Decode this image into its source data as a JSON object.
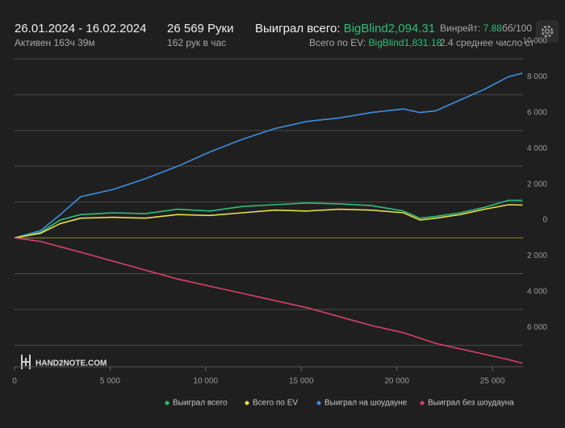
{
  "header": {
    "period": "26.01.2024 - 16.02.2024",
    "active": "Активен 163ч 39м",
    "hands": "26 569 Руки",
    "hands_per_hour": "162 рук в час",
    "won_total_label": "Выиграл всего:",
    "won_total_value": "BigBlind2,094.31",
    "ev_label": "Всего по EV:",
    "ev_value": "BigBlind1,831.18",
    "winrate_label": "Винрейт:",
    "winrate_value": "7.88",
    "winrate_unit": "бб/100",
    "avg_players": "2.4 среднее число ст"
  },
  "watermark": "HAND2NOTE.COM",
  "chart_data": {
    "type": "line",
    "x": [
      0,
      1350,
      2400,
      3460,
      5150,
      6840,
      8530,
      10220,
      11910,
      13600,
      15290,
      16980,
      18670,
      20350,
      21200,
      22050,
      23310,
      24580,
      25840,
      26569
    ],
    "series": [
      {
        "name": "Выиграл всего",
        "color": "#2fbf7a",
        "values": [
          0,
          300,
          1000,
          1300,
          1400,
          1350,
          1600,
          1500,
          1750,
          1850,
          1950,
          1900,
          1800,
          1500,
          1100,
          1200,
          1400,
          1700,
          2100,
          2094
        ]
      },
      {
        "name": "Всего по EV",
        "color": "#e6e04a",
        "values": [
          0,
          250,
          800,
          1100,
          1150,
          1100,
          1300,
          1250,
          1400,
          1550,
          1500,
          1600,
          1550,
          1400,
          1000,
          1100,
          1300,
          1600,
          1850,
          1831
        ]
      },
      {
        "name": "Выиграл на шоудауне",
        "color": "#3d8fe0",
        "values": [
          0,
          400,
          1300,
          2300,
          2700,
          3300,
          4000,
          4800,
          5500,
          6100,
          6500,
          6700,
          7000,
          7200,
          7000,
          7100,
          7700,
          8300,
          9000,
          9200
        ]
      },
      {
        "name": "Выиграл без шоудауна",
        "color": "#d9406e",
        "values": [
          0,
          -200,
          -500,
          -800,
          -1300,
          -1800,
          -2300,
          -2700,
          -3100,
          -3500,
          -3900,
          -4400,
          -4900,
          -5300,
          -5600,
          -5900,
          -6200,
          -6500,
          -6800,
          -7000
        ]
      }
    ],
    "xlim": [
      0,
      26600
    ],
    "xticks": [
      0,
      {
        "value": 5000,
        "label": "5 000"
      },
      {
        "value": 10000,
        "label": "10 000"
      },
      {
        "value": 15000,
        "label": "15 000"
      },
      {
        "value": 20000,
        "label": "20 000"
      },
      {
        "value": 25000,
        "label": "25 000"
      }
    ],
    "ylim": [
      -7200,
      10000
    ],
    "yticks": [
      {
        "value": -6000,
        "label": "6 000"
      },
      {
        "value": -4000,
        "label": "4 000"
      },
      {
        "value": -2000,
        "label": "2 000"
      },
      0,
      {
        "value": 2000,
        "label": "2 000"
      },
      {
        "value": 4000,
        "label": "4 000"
      },
      {
        "value": 6000,
        "label": "6 000"
      },
      {
        "value": 8000,
        "label": "8 000"
      },
      {
        "value": 10000,
        "label": "10 000"
      }
    ],
    "grid": true,
    "legend": "bottom"
  }
}
